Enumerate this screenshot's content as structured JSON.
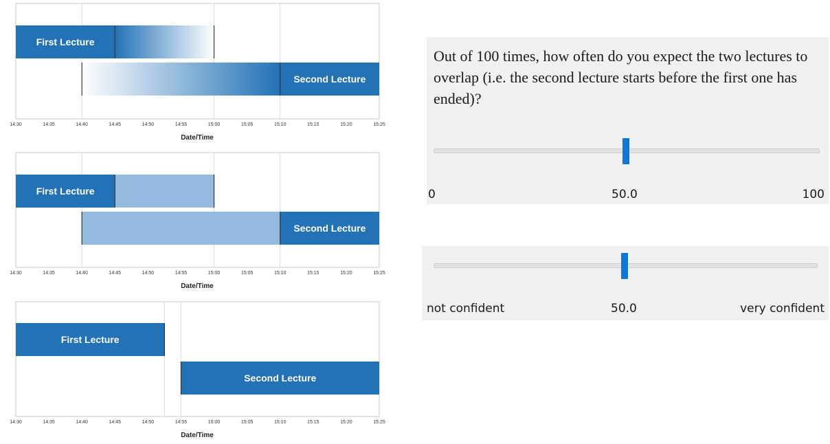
{
  "chart_data": [
    {
      "type": "gantt-bar",
      "variant": "gradient",
      "xlabel": "Date/Time",
      "xticks": [
        "14:30",
        "14:35",
        "14:40",
        "14:45",
        "14:50",
        "14:55",
        "15:00",
        "15:05",
        "15:10",
        "15:15",
        "15:20",
        "15:25"
      ],
      "xlim": [
        "14:30",
        "15:25"
      ],
      "bars": [
        {
          "name": "First Lecture",
          "start": "14:30",
          "end": "14:45",
          "uncertain_until": "15:00",
          "row": 0
        },
        {
          "name": "Second Lecture",
          "start": "15:10",
          "end": "15:25",
          "uncertain_from": "14:40",
          "row": 1
        }
      ],
      "gridlines": [
        "14:40",
        "15:00",
        "15:10"
      ]
    },
    {
      "type": "gantt-bar",
      "variant": "flat",
      "xlabel": "Date/Time",
      "xticks": [
        "14:30",
        "14:35",
        "14:40",
        "14:45",
        "14:50",
        "14:55",
        "15:00",
        "15:05",
        "15:10",
        "15:15",
        "15:20",
        "15:25"
      ],
      "xlim": [
        "14:30",
        "15:25"
      ],
      "bars": [
        {
          "name": "First Lecture",
          "start": "14:30",
          "end": "14:45",
          "uncertain_until": "15:00",
          "row": 0
        },
        {
          "name": "Second Lecture",
          "start": "15:10",
          "end": "15:25",
          "uncertain_from": "14:40",
          "row": 1
        }
      ],
      "gridlines": [
        "14:40",
        "15:00",
        "15:10"
      ]
    },
    {
      "type": "gantt-bar",
      "variant": "point",
      "xlabel": "Date/Time",
      "xticks": [
        "14:30",
        "14:35",
        "14:40",
        "14:45",
        "14:50",
        "14:55",
        "15:00",
        "15:05",
        "15:10",
        "15:15",
        "15:20",
        "15:25"
      ],
      "xlim": [
        "14:30",
        "15:25"
      ],
      "bars": [
        {
          "name": "First Lecture",
          "start": "14:30",
          "end": "14:52:30",
          "row": 0
        },
        {
          "name": "Second Lecture",
          "start": "14:55",
          "end": "15:25",
          "row": 1
        }
      ],
      "gridlines": [
        "14:52:30",
        "14:55"
      ]
    }
  ],
  "colors": {
    "bar": "#2372b6",
    "uncertain_flat": "#94bae0",
    "grid": "#dcdcdc",
    "axis": "#333333"
  },
  "question": {
    "text": "Out of 100 times, how often do you expect the two lectures to overlap (i.e. the second lecture starts before the first one has ended)?",
    "slider_value": 50.0,
    "value_label": "50.0",
    "min_label": "0",
    "max_label": "100"
  },
  "confidence": {
    "slider_value": 50.0,
    "value_label": "50.0",
    "min_label": "not confident",
    "max_label": "very confident"
  }
}
